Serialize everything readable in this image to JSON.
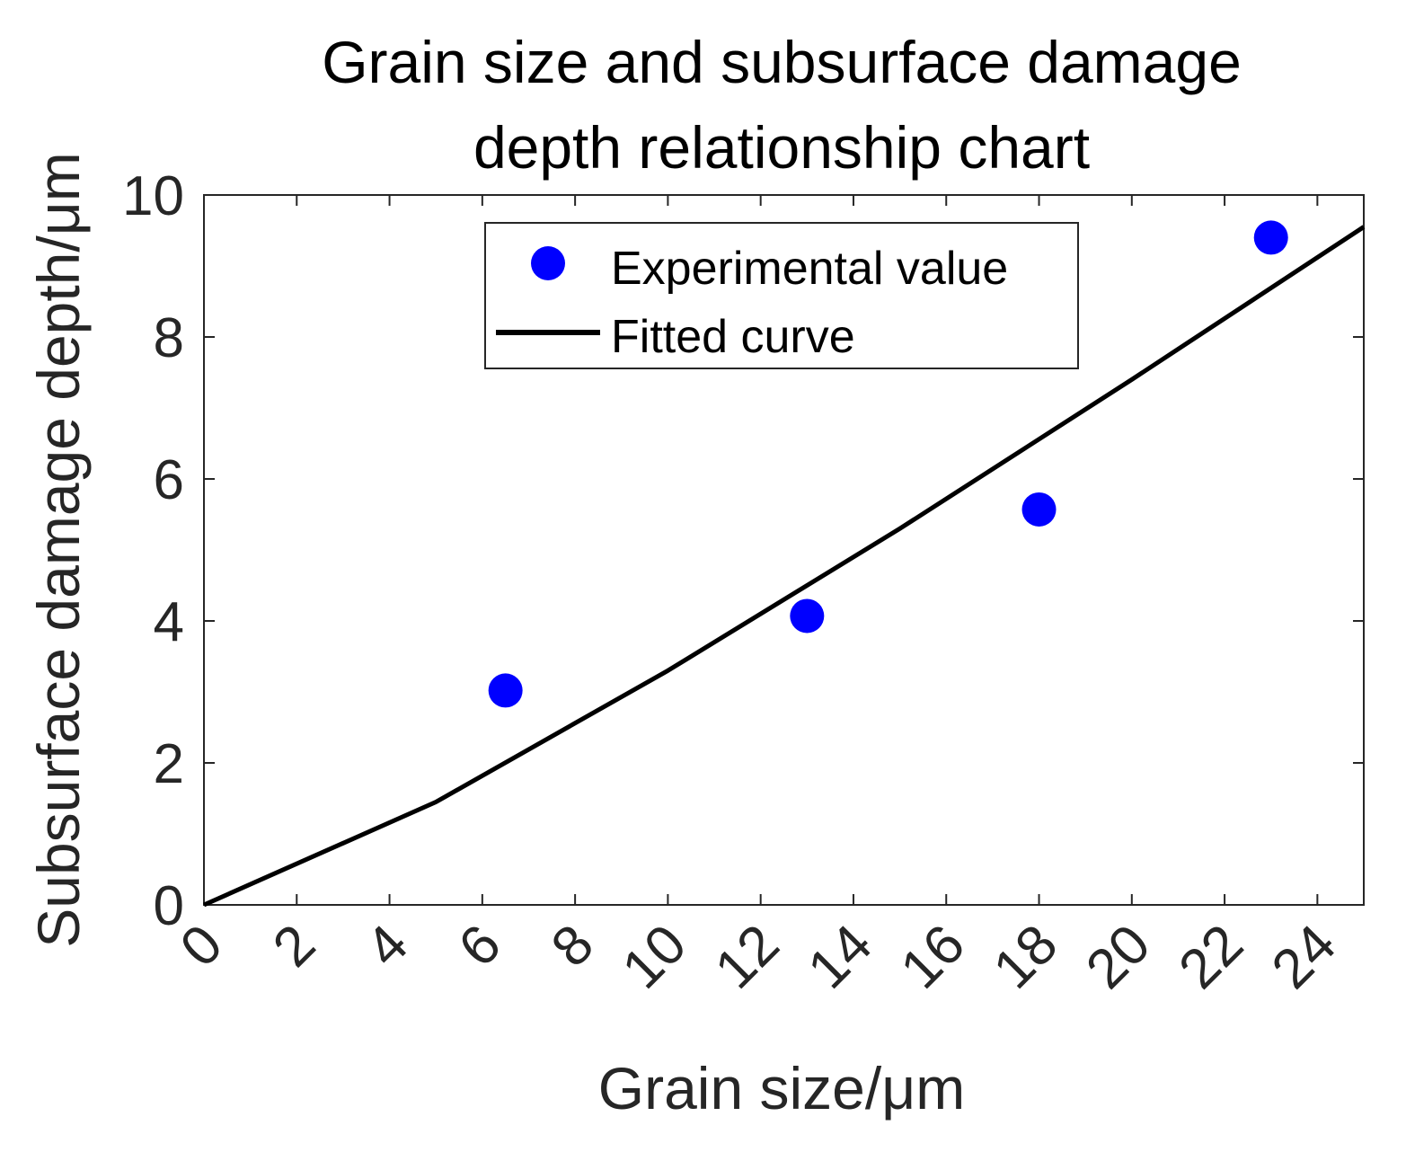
{
  "chart_data": {
    "type": "scatter",
    "title": [
      "Grain size and subsurface damage",
      "depth relationship chart"
    ],
    "xlabel": "Grain size/μm",
    "ylabel": "Subsurface damage depth/μm",
    "xlim": [
      0,
      25
    ],
    "ylim": [
      0,
      10
    ],
    "xticks": [
      0,
      2,
      4,
      6,
      8,
      10,
      12,
      14,
      16,
      18,
      20,
      22,
      24
    ],
    "yticks": [
      0,
      2,
      4,
      6,
      8,
      10
    ],
    "grid": false,
    "legend_position": "top-center",
    "series": [
      {
        "name": "Experimental value",
        "kind": "scatter",
        "color": "#0000ff",
        "x": [
          6.5,
          13,
          18,
          23
        ],
        "y": [
          3.02,
          4.07,
          5.57,
          9.4
        ]
      },
      {
        "name": "Fitted curve",
        "kind": "line",
        "color": "#000000",
        "x": [
          0,
          5,
          10,
          15,
          20,
          25
        ],
        "y": [
          0,
          1.45,
          3.3,
          5.3,
          7.4,
          9.55
        ]
      }
    ]
  }
}
